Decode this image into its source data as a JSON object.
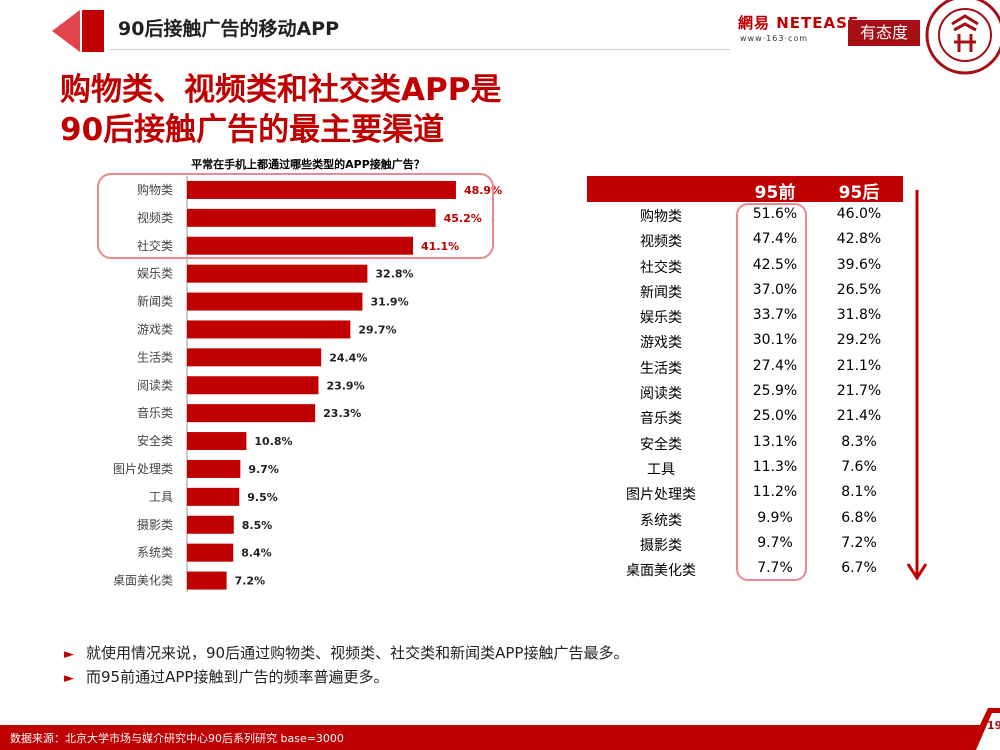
{
  "header": {
    "title": "90后接触广告的移动APP",
    "netease_logo": "網易 NETEASE",
    "netease_sub": "www·163·com",
    "youtaidu_logo": "有态度"
  },
  "headline": {
    "line1": "购物类、视频类和社交类APP是",
    "line2": "90后接触广告的最主要渠道"
  },
  "colors": {
    "accent": "#c00000",
    "highlight": "#e88a90"
  },
  "chart_data": [
    {
      "type": "bar",
      "orientation": "horizontal",
      "title": "平常在手机上都通过哪些类型的APP接触广告？",
      "categories": [
        "购物类",
        "视频类",
        "社交类",
        "娱乐类",
        "新闻类",
        "游戏类",
        "生活类",
        "阅读类",
        "音乐类",
        "安全类",
        "图片处理类",
        "工具",
        "摄影类",
        "系统类",
        "桌面美化类"
      ],
      "values": [
        48.9,
        45.2,
        41.1,
        32.8,
        31.9,
        29.7,
        24.4,
        23.9,
        23.3,
        10.8,
        9.7,
        9.5,
        8.5,
        8.4,
        7.2
      ],
      "value_labels": [
        "48.9%",
        "45.2%",
        "41.1%",
        "32.8%",
        "31.9%",
        "29.7%",
        "24.4%",
        "23.9%",
        "23.3%",
        "10.8%",
        "9.7%",
        "9.5%",
        "8.5%",
        "8.4%",
        "7.2%"
      ],
      "xlim": [
        0,
        55
      ],
      "highlighted": [
        "购物类",
        "视频类",
        "社交类"
      ]
    },
    {
      "type": "table",
      "columns": [
        "",
        "95前",
        "95后"
      ],
      "rows": [
        [
          "购物类",
          "51.6%",
          "46.0%"
        ],
        [
          "视频类",
          "47.4%",
          "42.8%"
        ],
        [
          "社交类",
          "42.5%",
          "39.6%"
        ],
        [
          "新闻类",
          "37.0%",
          "26.5%"
        ],
        [
          "娱乐类",
          "33.7%",
          "31.8%"
        ],
        [
          "游戏类",
          "30.1%",
          "29.2%"
        ],
        [
          "生活类",
          "27.4%",
          "21.1%"
        ],
        [
          "阅读类",
          "25.9%",
          "21.7%"
        ],
        [
          "音乐类",
          "25.0%",
          "21.4%"
        ],
        [
          "安全类",
          "13.1%",
          "8.3%"
        ],
        [
          "工具",
          "11.3%",
          "7.6%"
        ],
        [
          "图片处理类",
          "11.2%",
          "8.1%"
        ],
        [
          "系统类",
          "9.9%",
          "6.8%"
        ],
        [
          "摄影类",
          "9.7%",
          "7.2%"
        ],
        [
          "桌面美化类",
          "7.7%",
          "6.7%"
        ]
      ]
    }
  ],
  "notes": [
    "就使用情况来说，90后通过购物类、视频类、社交类和新闻类APP接触广告最多。",
    "而95前通过APP接触到广告的频率普遍更多。"
  ],
  "note_bullet": "►",
  "footer": {
    "source": "数据来源：北京大学市场与媒介研究中心90后系列研究 base=3000",
    "page": "19"
  }
}
